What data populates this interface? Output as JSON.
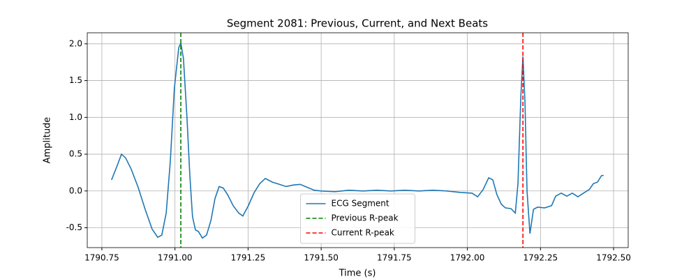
{
  "chart_data": {
    "type": "line",
    "title": "Segment 2081: Previous, Current, and Next Beats",
    "x_label": "Time (s)",
    "y_label": "Amplitude",
    "xlim": [
      1790.7,
      1792.55
    ],
    "ylim": [
      -0.77,
      2.15
    ],
    "xticks": [
      1790.75,
      {
        "value": 1791.0,
        "label": "1791.00"
      },
      1791.25,
      {
        "value": 1791.5,
        "label": "1791.50"
      },
      1791.75,
      {
        "value": 1792.0,
        "label": "1792.00"
      },
      1792.25,
      {
        "value": 1792.5,
        "label": "1792.50"
      }
    ],
    "yticks": [
      -0.5,
      {
        "value": 0,
        "label": "0.0"
      },
      0.5,
      {
        "value": 1,
        "label": "1.0"
      },
      1.5,
      {
        "value": 2,
        "label": "2.0"
      }
    ],
    "grid": true,
    "legend": "lower center",
    "series": [
      {
        "name": "ECG Segment",
        "color": "#1f77b4",
        "x": [
          1790.783,
          1790.803,
          1790.817,
          1790.831,
          1790.85,
          1790.874,
          1790.898,
          1790.922,
          1790.941,
          1790.955,
          1790.97,
          1790.984,
          1790.998,
          1791.013,
          1791.02,
          1791.029,
          1791.041,
          1791.051,
          1791.06,
          1791.07,
          1791.08,
          1791.094,
          1791.108,
          1791.123,
          1791.137,
          1791.151,
          1791.165,
          1791.18,
          1791.199,
          1791.218,
          1791.232,
          1791.251,
          1791.271,
          1791.29,
          1791.309,
          1791.333,
          1791.357,
          1791.38,
          1791.404,
          1791.428,
          1791.452,
          1791.476,
          1791.5,
          1791.547,
          1791.595,
          1791.643,
          1791.691,
          1791.738,
          1791.786,
          1791.834,
          1791.882,
          1791.93,
          1791.977,
          1792.016,
          1792.035,
          1792.054,
          1792.073,
          1792.087,
          1792.101,
          1792.116,
          1792.13,
          1792.149,
          1792.164,
          1792.173,
          1792.183,
          1792.19,
          1792.197,
          1792.204,
          1792.214,
          1792.226,
          1792.24,
          1792.264,
          1792.288,
          1792.302,
          1792.321,
          1792.34,
          1792.359,
          1792.378,
          1792.397,
          1792.417,
          1792.431,
          1792.445,
          1792.459,
          1792.466
        ],
        "values": [
          0.15,
          0.35,
          0.5,
          0.45,
          0.3,
          0.05,
          -0.25,
          -0.52,
          -0.63,
          -0.6,
          -0.3,
          0.4,
          1.4,
          1.95,
          2.01,
          1.8,
          1.0,
          0.2,
          -0.35,
          -0.53,
          -0.55,
          -0.64,
          -0.6,
          -0.4,
          -0.1,
          0.06,
          0.04,
          -0.05,
          -0.2,
          -0.3,
          -0.34,
          -0.2,
          -0.02,
          0.1,
          0.17,
          0.12,
          0.09,
          0.06,
          0.08,
          0.09,
          0.05,
          0.01,
          0.0,
          -0.01,
          0.01,
          0.0,
          0.01,
          0.0,
          0.01,
          0.0,
          0.01,
          0.0,
          -0.02,
          -0.03,
          -0.08,
          0.02,
          0.18,
          0.15,
          -0.05,
          -0.18,
          -0.23,
          -0.24,
          -0.3,
          0.1,
          1.3,
          1.83,
          1.2,
          0.0,
          -0.58,
          -0.25,
          -0.22,
          -0.23,
          -0.2,
          -0.07,
          -0.03,
          -0.07,
          -0.03,
          -0.08,
          -0.03,
          0.02,
          0.1,
          0.12,
          0.21,
          0.21
        ]
      }
    ],
    "vlines": [
      {
        "name": "Previous R-peak",
        "color": "#008000",
        "x": 1791.02
      },
      {
        "name": "Current R-peak",
        "color": "#ff0000",
        "x": 1792.19
      }
    ]
  }
}
